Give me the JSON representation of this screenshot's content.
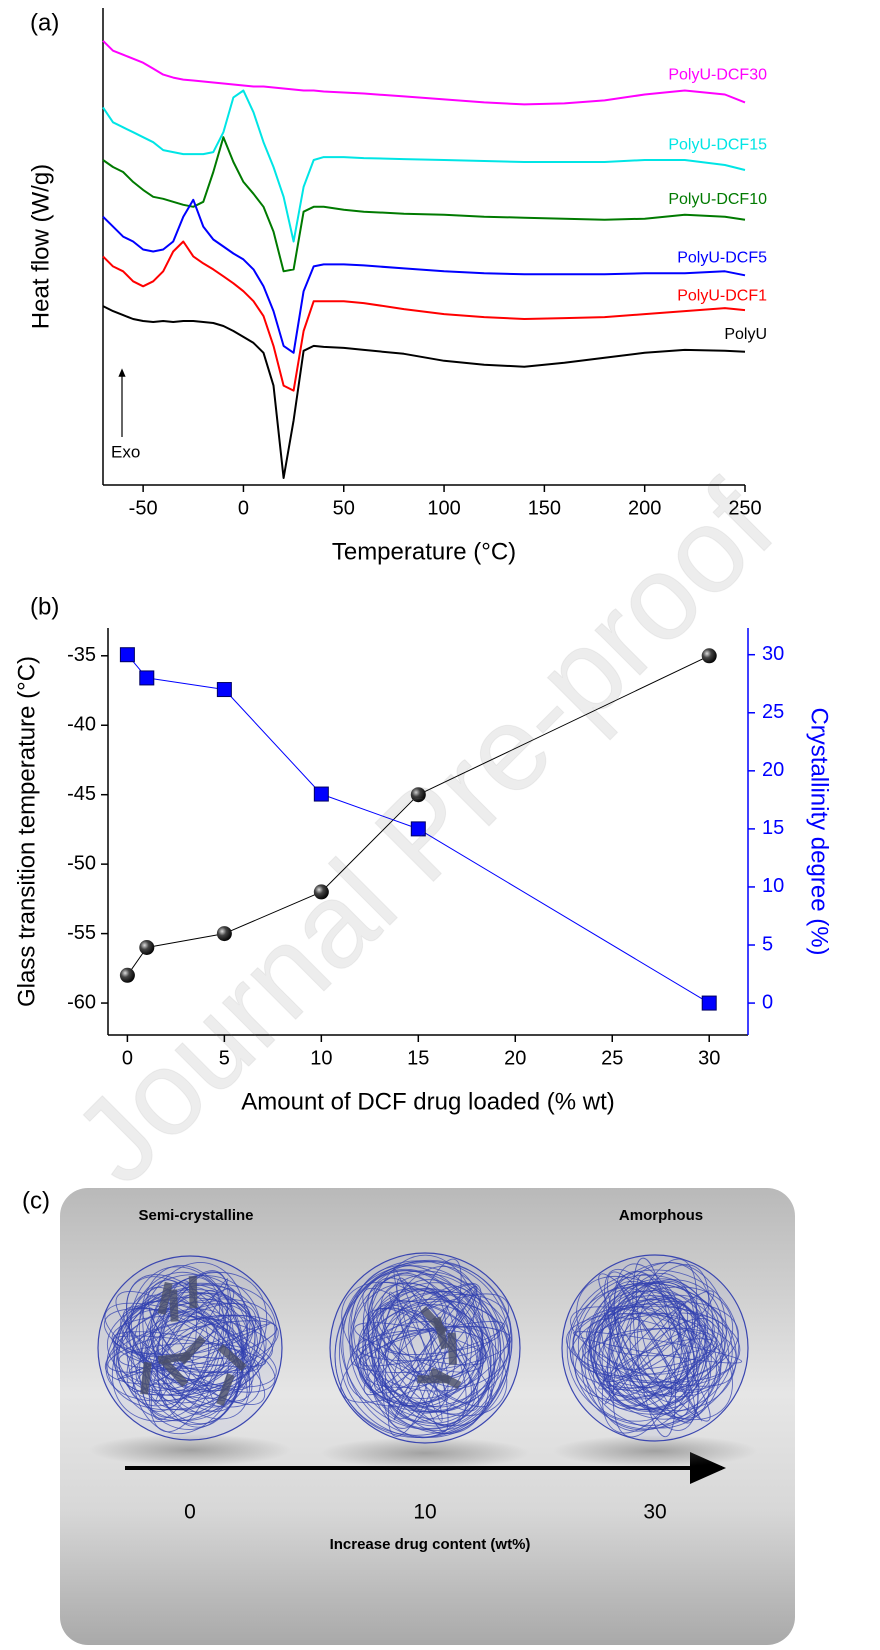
{
  "chart_data": [
    {
      "type": "line",
      "panel_label": "(a)",
      "x_label": "Temperature (°C)",
      "y_label": "Heat flow (W/g)",
      "annotation": "Exo",
      "x": [
        -70,
        -65,
        -60,
        -55,
        -50,
        -45,
        -40,
        -35,
        -30,
        -25,
        -20,
        -15,
        -10,
        -5,
        0,
        5,
        10,
        15,
        20,
        25,
        30,
        35,
        40,
        50,
        60,
        80,
        100,
        120,
        140,
        160,
        180,
        200,
        220,
        240,
        250
      ],
      "xlim": [
        -70,
        250
      ],
      "xticks": [
        -50,
        0,
        50,
        100,
        150,
        200,
        250
      ],
      "ylim": [
        0,
        480
      ],
      "series": [
        {
          "name": "PolyU-DCF30",
          "color": "#ff00ff",
          "values": [
            447,
            437,
            433,
            429,
            425,
            419,
            413,
            410,
            408,
            407,
            406,
            405,
            404,
            403,
            402,
            401,
            401,
            400,
            399,
            398,
            397,
            397,
            396,
            395,
            394,
            391,
            388,
            385,
            383,
            384,
            387,
            393,
            397,
            393,
            385
          ]
        },
        {
          "name": "PolyU-DCF15",
          "color": "#00e5e5",
          "values": [
            380,
            365,
            360,
            355,
            350,
            345,
            337,
            335,
            333,
            333,
            333,
            335,
            355,
            390,
            397,
            375,
            345,
            320,
            290,
            245,
            300,
            327,
            330,
            330,
            329,
            328,
            327,
            326,
            325,
            325,
            325,
            327,
            327,
            322,
            317
          ]
        },
        {
          "name": "PolyU-DCF10",
          "color": "#007a00",
          "values": [
            327,
            320,
            315,
            305,
            297,
            290,
            288,
            285,
            282,
            280,
            285,
            315,
            350,
            325,
            305,
            293,
            280,
            255,
            215,
            217,
            275,
            280,
            280,
            277,
            275,
            273,
            272,
            270,
            269,
            268,
            267,
            268,
            272,
            270,
            267
          ]
        },
        {
          "name": "PolyU-DCF5",
          "color": "#0000ff",
          "values": [
            270,
            260,
            250,
            245,
            237,
            235,
            237,
            245,
            270,
            287,
            260,
            247,
            240,
            233,
            227,
            217,
            200,
            175,
            140,
            133,
            195,
            220,
            222,
            222,
            221,
            218,
            215,
            213,
            212,
            212,
            212,
            213,
            213,
            215,
            211
          ]
        },
        {
          "name": "PolyU-DCF1",
          "color": "#ff0000",
          "values": [
            230,
            220,
            215,
            205,
            200,
            205,
            215,
            235,
            245,
            230,
            223,
            217,
            210,
            203,
            195,
            185,
            170,
            140,
            100,
            95,
            155,
            185,
            185,
            185,
            183,
            177,
            172,
            169,
            167,
            168,
            169,
            172,
            175,
            178,
            176
          ]
        },
        {
          "name": "PolyU",
          "color": "#000000",
          "values": [
            180,
            175,
            171,
            167,
            165,
            164,
            165,
            164,
            165,
            165,
            164,
            163,
            160,
            155,
            149,
            143,
            133,
            100,
            7,
            65,
            135,
            140,
            139,
            138,
            136,
            132,
            125,
            121,
            119,
            123,
            128,
            133,
            136,
            135,
            134
          ]
        }
      ]
    },
    {
      "type": "line",
      "panel_label": "(b)",
      "x_label": "Amount of DCF drug loaded (% wt)",
      "y_label": "Glass transition temperature (°C)",
      "y2_label": "Crystallinity degree (%)",
      "y2_color": "#0000ff",
      "x": [
        0,
        1,
        5,
        10,
        15,
        30
      ],
      "xlim": [
        -1,
        32
      ],
      "xticks": [
        0,
        5,
        10,
        15,
        20,
        25,
        30
      ],
      "ylim": [
        -62.3,
        -33
      ],
      "yticks": [
        -60,
        -55,
        -50,
        -45,
        -40,
        -35
      ],
      "y2lim": [
        -2.75,
        32.3
      ],
      "y2ticks": [
        0,
        5,
        10,
        15,
        20,
        25,
        30
      ],
      "series": [
        {
          "color": "#000000",
          "marker": "sphere",
          "values": [
            -58,
            -56,
            -55,
            -52,
            -45,
            -35
          ]
        },
        {
          "color": "#0000ff",
          "marker": "square",
          "axis": "y2",
          "values": [
            30,
            28,
            27,
            18,
            15,
            0
          ]
        }
      ]
    }
  ],
  "illustration": {
    "panel_label": "(c)",
    "left_label": "Semi-crystalline",
    "right_label": "Amorphous",
    "axis_labels": [
      "0",
      "10",
      "30"
    ],
    "arrow_label": "Increase drug content (wt%)"
  },
  "watermark": "Journal Pre-proof"
}
